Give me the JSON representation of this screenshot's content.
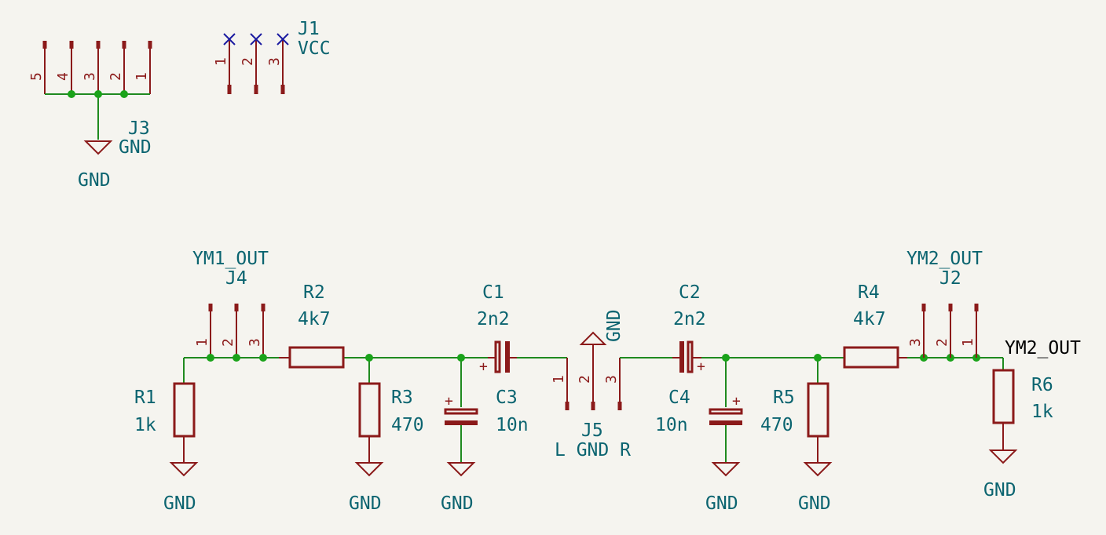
{
  "connectors": {
    "J1": {
      "ref": "J1",
      "value": "VCC",
      "pins": [
        "1",
        "2",
        "3"
      ]
    },
    "J2": {
      "ref": "J2",
      "value": "YM2_OUT",
      "pins": [
        "3",
        "2",
        "1"
      ]
    },
    "J3": {
      "ref": "J3",
      "value": "GND",
      "pins": [
        "5",
        "4",
        "3",
        "2",
        "1"
      ]
    },
    "J4": {
      "ref": "J4",
      "value": "YM1_OUT",
      "pins": [
        "1",
        "2",
        "3"
      ]
    },
    "J5": {
      "ref": "J5",
      "value": "L GND R",
      "pins": [
        "1",
        "2",
        "3"
      ]
    }
  },
  "resistors": {
    "R1": {
      "ref": "R1",
      "value": "1k"
    },
    "R2": {
      "ref": "R2",
      "value": "4k7"
    },
    "R3": {
      "ref": "R3",
      "value": "470"
    },
    "R4": {
      "ref": "R4",
      "value": "4k7"
    },
    "R5": {
      "ref": "R5",
      "value": "470"
    },
    "R6": {
      "ref": "R6",
      "value": "1k"
    }
  },
  "capacitors": {
    "C1": {
      "ref": "C1",
      "value": "2n2"
    },
    "C2": {
      "ref": "C2",
      "value": "2n2"
    },
    "C3": {
      "ref": "C3",
      "value": "10n"
    },
    "C4": {
      "ref": "C4",
      "value": "10n"
    }
  },
  "labels": {
    "net_ym2_out": "YM2_OUT",
    "gnd": "GND",
    "plus": "+"
  }
}
